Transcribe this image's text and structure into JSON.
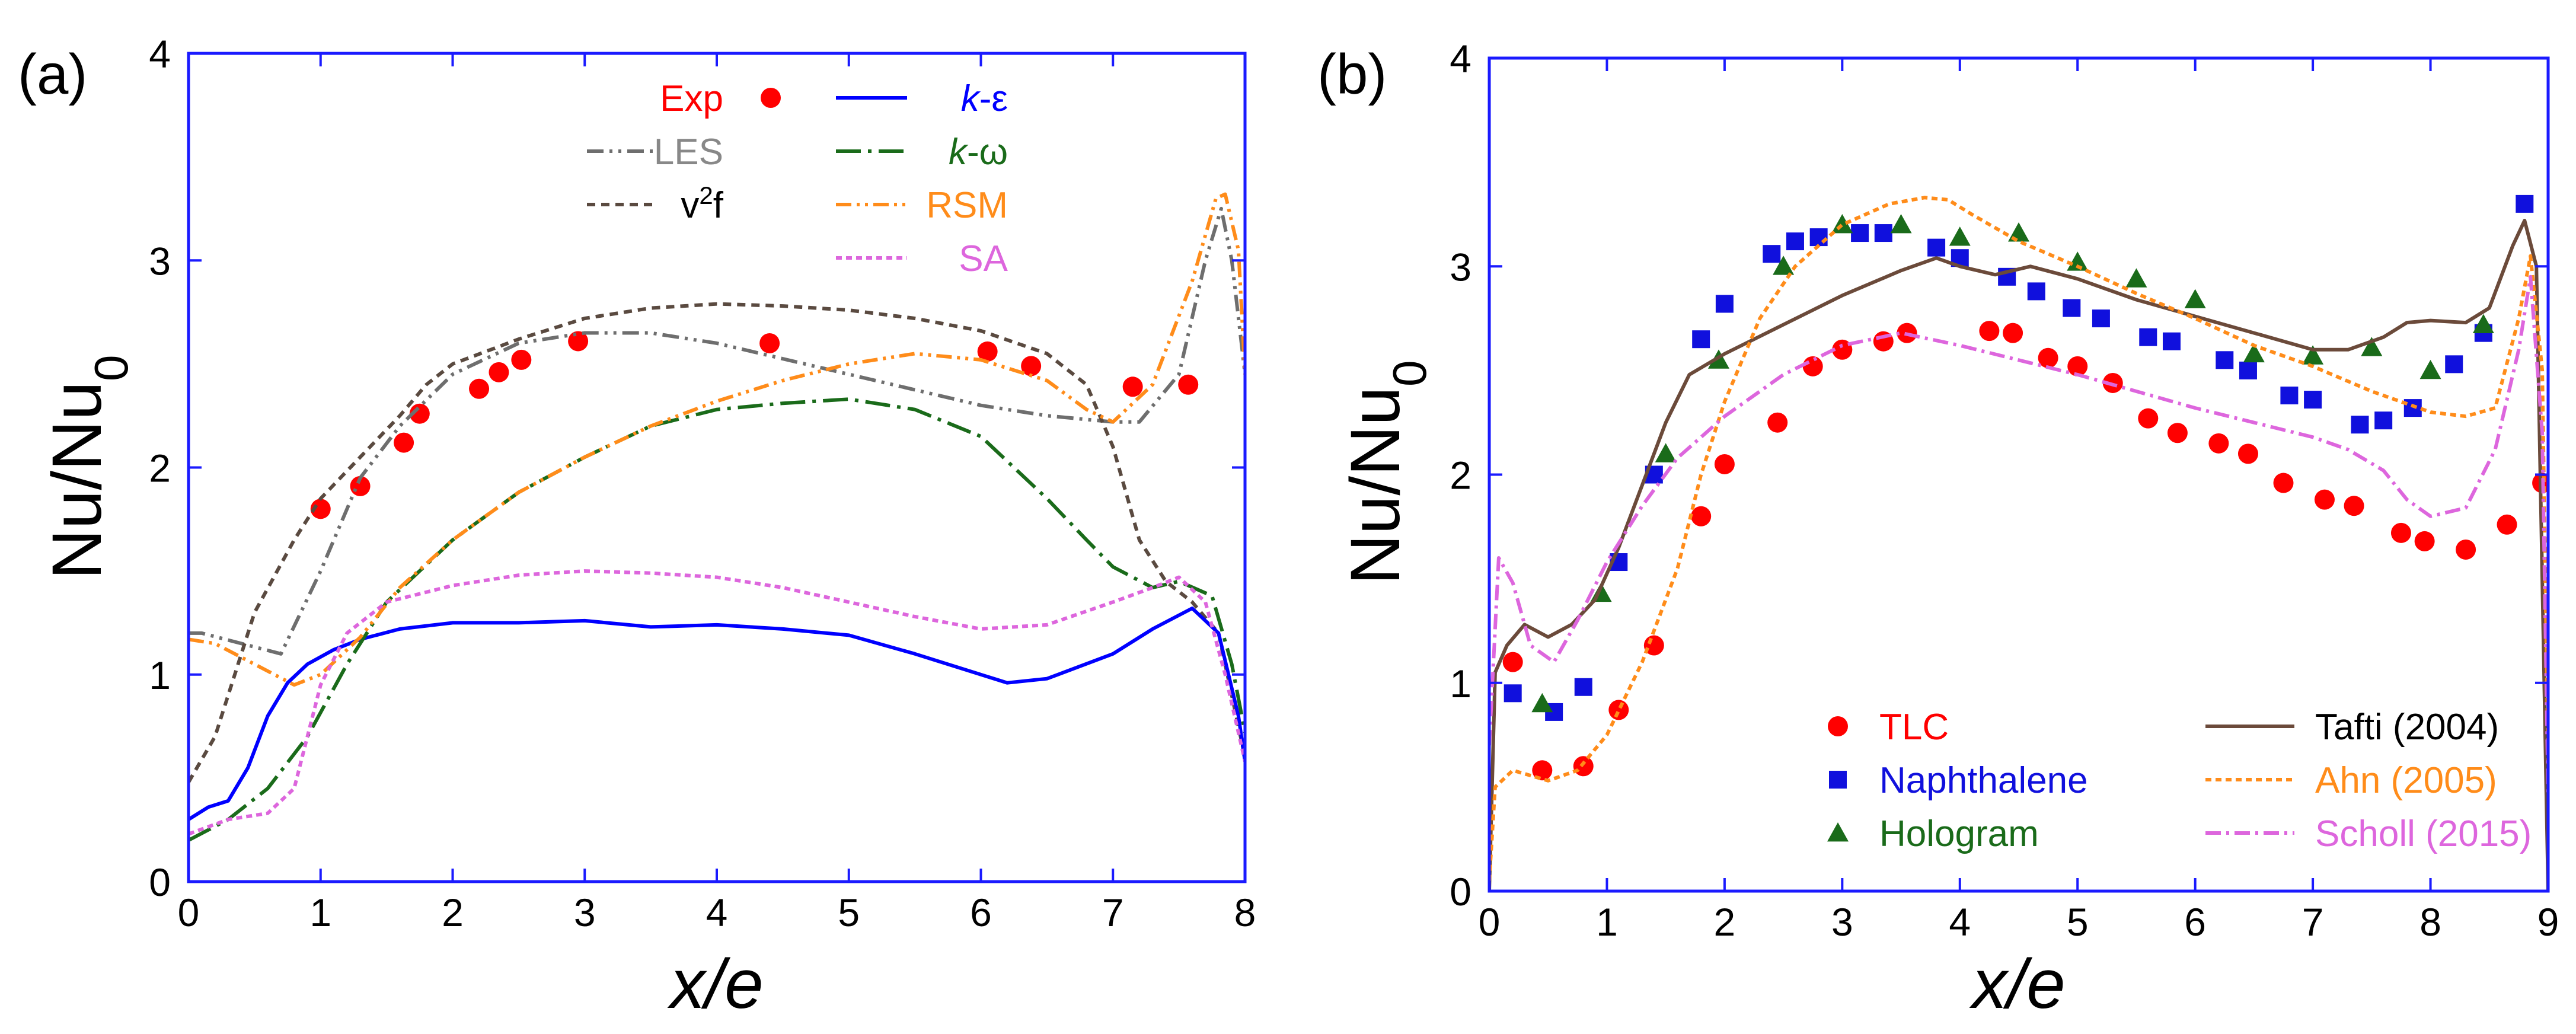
{
  "chart_data": [
    {
      "type": "line",
      "panel_label": "(a)",
      "xlabel": "x/e",
      "ylabel": "Nu/Nu",
      "ylabel_sub": "0",
      "xlim": [
        0,
        8
      ],
      "ylim": [
        0,
        4
      ],
      "xticks": [
        "0",
        "1",
        "2",
        "3",
        "4",
        "5",
        "6",
        "7",
        "8"
      ],
      "yticks": [
        "0",
        "1",
        "2",
        "3",
        "4"
      ],
      "legend_placement": "top-right",
      "series": [
        {
          "name": "Exp",
          "legend_html": "Exp",
          "kind": "marker",
          "marker": "circle",
          "color": "#ff0000",
          "text_color": "#ff0000",
          "x": [
            1.0,
            1.3,
            1.63,
            1.75,
            2.2,
            2.35,
            2.52,
            2.95,
            4.4,
            6.05,
            6.38,
            7.15,
            7.57
          ],
          "y": [
            1.8,
            1.91,
            2.12,
            2.26,
            2.38,
            2.46,
            2.52,
            2.61,
            2.6,
            2.56,
            2.49,
            2.39,
            2.4
          ]
        },
        {
          "name": "LES",
          "legend_html": "LES",
          "kind": "line",
          "dash": "28,10,5,10,5,10",
          "color": "#6e6e6e",
          "text_color": "#888888",
          "x": [
            0,
            0.1,
            0.4,
            0.7,
            1.0,
            1.3,
            1.6,
            2.0,
            2.5,
            3.0,
            3.5,
            4.0,
            5.0,
            6.0,
            6.5,
            7.0,
            7.2,
            7.5,
            7.7,
            7.82,
            7.9,
            8.0
          ],
          "y": [
            1.2,
            1.2,
            1.15,
            1.1,
            1.5,
            1.95,
            2.2,
            2.45,
            2.6,
            2.65,
            2.65,
            2.6,
            2.45,
            2.3,
            2.25,
            2.22,
            2.22,
            2.45,
            3.0,
            3.25,
            3.0,
            2.45
          ]
        },
        {
          "name": "v2f",
          "legend_html": "v<tspan baseline-shift=\"super\" font-size=\"42\">2</tspan>f",
          "kind": "line",
          "dash": "14,10",
          "color": "#5a4a40",
          "text_color": "#000000",
          "x": [
            0,
            0.2,
            0.5,
            0.8,
            1.0,
            1.3,
            1.6,
            1.8,
            2.0,
            2.5,
            3.0,
            3.5,
            4.0,
            4.5,
            5.0,
            5.5,
            6.0,
            6.5,
            6.8,
            7.0,
            7.2,
            7.4,
            7.6,
            7.8,
            8.0
          ],
          "y": [
            0.48,
            0.7,
            1.3,
            1.65,
            1.85,
            2.05,
            2.25,
            2.4,
            2.5,
            2.62,
            2.72,
            2.77,
            2.79,
            2.78,
            2.76,
            2.72,
            2.66,
            2.55,
            2.4,
            2.1,
            1.65,
            1.45,
            1.35,
            1.2,
            0.6
          ]
        },
        {
          "name": "k-ε",
          "legend_html": "<tspan font-style=\"italic\">k</tspan>-ε",
          "kind": "line",
          "dash": "",
          "color": "#0000ff",
          "text_color": "#0000ff",
          "x": [
            0,
            0.15,
            0.3,
            0.45,
            0.6,
            0.75,
            0.9,
            1.1,
            1.3,
            1.6,
            2.0,
            2.5,
            3.0,
            3.5,
            4.0,
            4.5,
            5.0,
            5.5,
            6.0,
            6.2,
            6.5,
            7.0,
            7.3,
            7.6,
            7.8,
            7.95,
            8.0
          ],
          "y": [
            0.3,
            0.36,
            0.39,
            0.55,
            0.8,
            0.96,
            1.05,
            1.12,
            1.17,
            1.22,
            1.25,
            1.25,
            1.26,
            1.23,
            1.24,
            1.22,
            1.19,
            1.1,
            1.0,
            0.96,
            0.98,
            1.1,
            1.22,
            1.32,
            1.2,
            0.8,
            0.58
          ]
        },
        {
          "name": "k-ω",
          "legend_html": "<tspan font-style=\"italic\">k</tspan>-ω",
          "kind": "line",
          "dash": "42,12,6,12",
          "color": "#1a6b1a",
          "text_color": "#1a6b1a",
          "x": [
            0,
            0.3,
            0.6,
            0.9,
            1.2,
            1.5,
            2.0,
            2.5,
            3.0,
            3.5,
            4.0,
            4.5,
            5.0,
            5.5,
            6.0,
            6.5,
            6.8,
            7.0,
            7.3,
            7.5,
            7.75,
            7.9,
            8.0
          ],
          "y": [
            0.2,
            0.3,
            0.45,
            0.7,
            1.05,
            1.35,
            1.65,
            1.88,
            2.05,
            2.2,
            2.28,
            2.31,
            2.33,
            2.28,
            2.15,
            1.85,
            1.65,
            1.52,
            1.42,
            1.45,
            1.38,
            1.05,
            0.72
          ]
        },
        {
          "name": "RSM",
          "legend_html": "RSM",
          "kind": "line",
          "dash": "26,9,5,9,5,9",
          "color": "#ff8c1a",
          "text_color": "#ff8c1a",
          "x": [
            0,
            0.2,
            0.5,
            0.8,
            1.0,
            1.3,
            1.6,
            2.0,
            2.5,
            3.0,
            3.5,
            4.0,
            4.5,
            5.0,
            5.5,
            6.0,
            6.5,
            6.8,
            7.0,
            7.3,
            7.6,
            7.78,
            7.85,
            7.95,
            8.0
          ],
          "y": [
            1.17,
            1.15,
            1.05,
            0.95,
            1.0,
            1.18,
            1.42,
            1.65,
            1.88,
            2.05,
            2.2,
            2.32,
            2.42,
            2.5,
            2.55,
            2.52,
            2.42,
            2.28,
            2.22,
            2.4,
            2.9,
            3.3,
            3.32,
            3.05,
            2.45
          ]
        },
        {
          "name": "SA",
          "legend_html": "SA",
          "kind": "line",
          "dash": "10,7",
          "color": "#dd66dd",
          "text_color": "#dd66dd",
          "x": [
            0,
            0.3,
            0.6,
            0.8,
            1.0,
            1.2,
            1.5,
            2.0,
            2.5,
            3.0,
            3.5,
            4.0,
            4.5,
            5.0,
            5.5,
            6.0,
            6.5,
            7.0,
            7.3,
            7.5,
            7.7,
            7.85,
            8.0
          ],
          "y": [
            0.23,
            0.3,
            0.33,
            0.45,
            0.95,
            1.2,
            1.35,
            1.43,
            1.48,
            1.5,
            1.49,
            1.47,
            1.42,
            1.35,
            1.28,
            1.22,
            1.24,
            1.35,
            1.42,
            1.47,
            1.35,
            1.0,
            0.58
          ]
        }
      ],
      "legend_layout": [
        [
          "Exp",
          "k-ε"
        ],
        [
          "LES",
          "k-ω"
        ],
        [
          "v2f",
          "RSM"
        ],
        [
          "",
          "SA"
        ]
      ]
    },
    {
      "type": "line",
      "panel_label": "(b)",
      "xlabel": "x/e",
      "ylabel": "Nu/Nu",
      "ylabel_sub": "0",
      "xlim": [
        0,
        9
      ],
      "ylim": [
        0,
        4
      ],
      "xticks": [
        "0",
        "1",
        "2",
        "3",
        "4",
        "5",
        "6",
        "7",
        "8",
        "9"
      ],
      "yticks": [
        "0",
        "1",
        "2",
        "3",
        "4"
      ],
      "legend_placement": "bottom-right",
      "series": [
        {
          "name": "TLC",
          "legend_html": "TLC",
          "kind": "marker",
          "marker": "circle",
          "color": "#ff0000",
          "text_color": "#ff0000",
          "x": [
            0.2,
            0.45,
            0.8,
            1.1,
            1.4,
            1.8,
            2.0,
            2.45,
            2.75,
            3.0,
            3.35,
            3.55,
            4.25,
            4.45,
            4.75,
            5.0,
            5.3,
            5.6,
            5.85,
            6.2,
            6.45,
            6.75,
            7.1,
            7.35,
            7.75,
            7.95,
            8.3,
            8.65,
            8.95
          ],
          "y": [
            1.1,
            0.58,
            0.6,
            0.87,
            1.18,
            1.8,
            2.05,
            2.25,
            2.52,
            2.6,
            2.64,
            2.68,
            2.69,
            2.68,
            2.56,
            2.52,
            2.44,
            2.27,
            2.2,
            2.15,
            2.1,
            1.96,
            1.88,
            1.85,
            1.72,
            1.68,
            1.64,
            1.76,
            1.96
          ]
        },
        {
          "name": "Naphthalene",
          "legend_html": "Naphthalene",
          "kind": "marker",
          "marker": "square",
          "color": "#1010dd",
          "text_color": "#1010dd",
          "x": [
            0.2,
            0.55,
            0.8,
            1.1,
            1.4,
            1.8,
            2.0,
            2.4,
            2.6,
            2.8,
            3.15,
            3.35,
            3.8,
            4.0,
            4.4,
            4.65,
            4.95,
            5.2,
            5.6,
            5.8,
            6.25,
            6.45,
            6.8,
            7.0,
            7.4,
            7.6,
            7.85,
            8.2,
            8.45,
            8.8
          ],
          "y": [
            0.95,
            0.86,
            0.98,
            1.58,
            2.0,
            2.65,
            2.82,
            3.06,
            3.12,
            3.14,
            3.16,
            3.16,
            3.09,
            3.04,
            2.95,
            2.88,
            2.8,
            2.75,
            2.66,
            2.64,
            2.55,
            2.5,
            2.38,
            2.36,
            2.24,
            2.26,
            2.32,
            2.53,
            2.68,
            3.3
          ]
        },
        {
          "name": "Hologram",
          "legend_html": "Hologram",
          "kind": "marker",
          "marker": "triangle",
          "color": "#1a6b1a",
          "text_color": "#1a6b1a",
          "x": [
            0.45,
            0.95,
            1.5,
            1.95,
            2.5,
            3.0,
            3.5,
            4.0,
            4.5,
            5.0,
            5.5,
            6.0,
            6.5,
            7.0,
            7.5,
            8.0,
            8.45
          ],
          "y": [
            0.9,
            1.43,
            2.1,
            2.55,
            3.0,
            3.2,
            3.2,
            3.14,
            3.16,
            3.02,
            2.94,
            2.84,
            2.58,
            2.57,
            2.61,
            2.5,
            2.72
          ]
        },
        {
          "name": "Tafti (2004)",
          "legend_html": "Tafti (2004)",
          "kind": "line",
          "dash": "",
          "color": "#6b4a3a",
          "text_color": "#000000",
          "x": [
            0,
            0.05,
            0.15,
            0.3,
            0.5,
            0.7,
            0.9,
            1.1,
            1.3,
            1.5,
            1.7,
            2.0,
            2.5,
            3.0,
            3.5,
            3.8,
            4.0,
            4.3,
            4.6,
            5.0,
            5.5,
            6.0,
            6.5,
            7.0,
            7.3,
            7.6,
            7.8,
            8.0,
            8.3,
            8.5,
            8.7,
            8.8,
            8.9,
            9.0
          ],
          "y": [
            0.0,
            1.05,
            1.18,
            1.28,
            1.22,
            1.28,
            1.4,
            1.65,
            1.95,
            2.25,
            2.48,
            2.58,
            2.72,
            2.86,
            2.98,
            3.04,
            3.0,
            2.96,
            3.0,
            2.94,
            2.84,
            2.76,
            2.68,
            2.6,
            2.6,
            2.66,
            2.73,
            2.74,
            2.73,
            2.8,
            3.1,
            3.22,
            3.0,
            0.0
          ]
        },
        {
          "name": "Ahn (2005)",
          "legend_html": "Ahn (2005)",
          "kind": "line",
          "dash": "10,7",
          "color": "#ff8c1a",
          "text_color": "#ff8c1a",
          "x": [
            0,
            0.05,
            0.2,
            0.5,
            0.75,
            1.0,
            1.3,
            1.6,
            1.8,
            2.0,
            2.3,
            2.6,
            3.0,
            3.4,
            3.7,
            3.9,
            4.1,
            4.5,
            5.0,
            5.5,
            6.0,
            6.5,
            7.0,
            7.5,
            8.0,
            8.3,
            8.55,
            8.75,
            8.85,
            8.95,
            9.0
          ],
          "y": [
            0.05,
            0.5,
            0.58,
            0.53,
            0.58,
            0.75,
            1.1,
            1.55,
            2.0,
            2.35,
            2.75,
            3.0,
            3.2,
            3.3,
            3.33,
            3.32,
            3.25,
            3.12,
            3.0,
            2.87,
            2.75,
            2.62,
            2.52,
            2.4,
            2.3,
            2.28,
            2.32,
            2.75,
            3.05,
            2.5,
            0.6
          ]
        },
        {
          "name": "Scholl (2015)",
          "legend_html": "Scholl (2015)",
          "kind": "line",
          "dash": "26,9,5,9",
          "color": "#dd66dd",
          "text_color": "#dd66dd",
          "x": [
            0,
            0.08,
            0.2,
            0.35,
            0.55,
            0.75,
            1.0,
            1.3,
            1.6,
            2.0,
            2.5,
            3.0,
            3.5,
            4.0,
            4.5,
            5.0,
            5.5,
            6.0,
            6.5,
            7.0,
            7.3,
            7.6,
            7.8,
            8.0,
            8.3,
            8.55,
            8.75,
            8.85,
            8.95,
            9.0
          ],
          "y": [
            0.7,
            1.6,
            1.48,
            1.18,
            1.1,
            1.3,
            1.58,
            1.85,
            2.08,
            2.28,
            2.48,
            2.62,
            2.68,
            2.62,
            2.55,
            2.48,
            2.4,
            2.32,
            2.25,
            2.18,
            2.12,
            2.02,
            1.88,
            1.8,
            1.84,
            2.12,
            2.6,
            2.95,
            2.2,
            0.45
          ]
        }
      ],
      "legend_layout": [
        [
          "TLC",
          "Tafti (2004)"
        ],
        [
          "Naphthalene",
          "Ahn (2005)"
        ],
        [
          "Hologram",
          "Scholl (2015)"
        ]
      ]
    }
  ]
}
